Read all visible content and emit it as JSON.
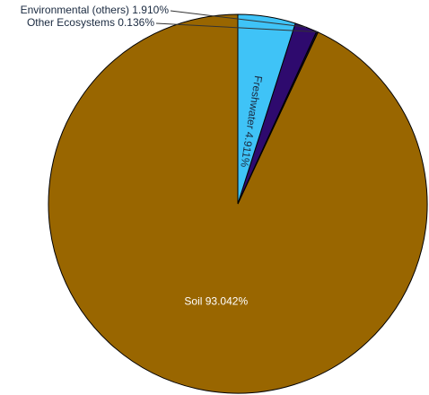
{
  "chart_data": {
    "type": "pie",
    "title": "",
    "start_angle_deg": 0,
    "direction": "counterclockwise",
    "slices": [
      {
        "label": "Soil",
        "value": 93.042,
        "display": "Soil 93.042%",
        "color": "#996600"
      },
      {
        "label": "Other Ecosystems",
        "value": 0.136,
        "display": "Other Ecosystems 0.136%",
        "color": "#1a0d33"
      },
      {
        "label": "Environmental (others)",
        "value": 1.91,
        "display": "Environmental (others) 1.910%",
        "color": "#2e0a6e"
      },
      {
        "label": "Freshwater",
        "value": 4.911,
        "display": "Freshwater 4.911%",
        "color": "#3fc3f7"
      }
    ]
  }
}
